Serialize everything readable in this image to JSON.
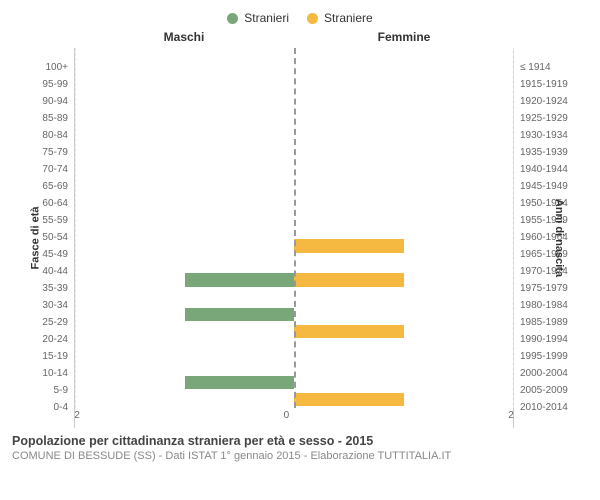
{
  "legend": {
    "male": {
      "label": "Stranieri",
      "color": "#7aa77a"
    },
    "female": {
      "label": "Straniere",
      "color": "#f5b840"
    }
  },
  "column_titles": {
    "left": "Maschi",
    "right": "Femmine"
  },
  "axis_titles": {
    "left": "Fasce di età",
    "right": "Anni di nascita"
  },
  "x_axis": {
    "max": 2,
    "ticks_left": [
      "2",
      "0"
    ],
    "ticks_right": [
      "0",
      "2"
    ]
  },
  "age_bands": [
    {
      "age": "100+",
      "birth": "≤ 1914",
      "m": 0,
      "f": 0
    },
    {
      "age": "95-99",
      "birth": "1915-1919",
      "m": 0,
      "f": 0
    },
    {
      "age": "90-94",
      "birth": "1920-1924",
      "m": 0,
      "f": 0
    },
    {
      "age": "85-89",
      "birth": "1925-1929",
      "m": 0,
      "f": 0
    },
    {
      "age": "80-84",
      "birth": "1930-1934",
      "m": 0,
      "f": 0
    },
    {
      "age": "75-79",
      "birth": "1935-1939",
      "m": 0,
      "f": 0
    },
    {
      "age": "70-74",
      "birth": "1940-1944",
      "m": 0,
      "f": 0
    },
    {
      "age": "65-69",
      "birth": "1945-1949",
      "m": 0,
      "f": 0
    },
    {
      "age": "60-64",
      "birth": "1950-1954",
      "m": 0,
      "f": 0
    },
    {
      "age": "55-59",
      "birth": "1955-1959",
      "m": 0,
      "f": 0
    },
    {
      "age": "50-54",
      "birth": "1960-1964",
      "m": 0,
      "f": 0
    },
    {
      "age": "45-49",
      "birth": "1965-1969",
      "m": 0,
      "f": 1
    },
    {
      "age": "40-44",
      "birth": "1970-1974",
      "m": 0,
      "f": 0
    },
    {
      "age": "35-39",
      "birth": "1975-1979",
      "m": 1,
      "f": 1
    },
    {
      "age": "30-34",
      "birth": "1980-1984",
      "m": 0,
      "f": 0
    },
    {
      "age": "25-29",
      "birth": "1985-1989",
      "m": 1,
      "f": 0
    },
    {
      "age": "20-24",
      "birth": "1990-1994",
      "m": 0,
      "f": 1
    },
    {
      "age": "15-19",
      "birth": "1995-1999",
      "m": 0,
      "f": 0
    },
    {
      "age": "10-14",
      "birth": "2000-2004",
      "m": 0,
      "f": 0
    },
    {
      "age": "5-9",
      "birth": "2005-2009",
      "m": 1,
      "f": 0
    },
    {
      "age": "0-4",
      "birth": "2010-2014",
      "m": 0,
      "f": 1
    }
  ],
  "caption": {
    "title": "Popolazione per cittadinanza straniera per età e sesso - 2015",
    "sub": "COMUNE DI BESSUDE (SS) - Dati ISTAT 1° gennaio 2015 - Elaborazione TUTTITALIA.IT"
  },
  "style": {
    "background": "#ffffff",
    "grid_color": "#e6e6e6",
    "centerline_color": "#999999",
    "tick_font_size": 10,
    "label_font_size": 11,
    "title_font_size": 12
  }
}
